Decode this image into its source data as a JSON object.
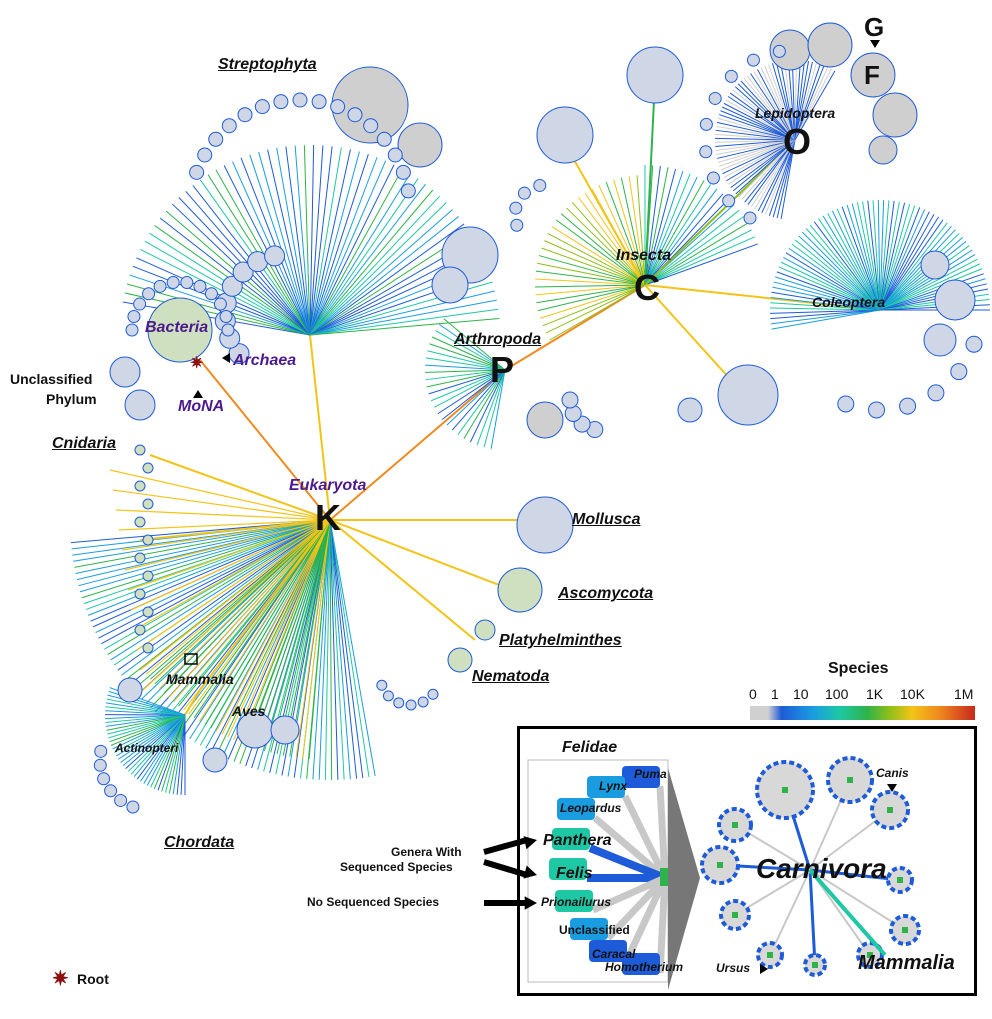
{
  "taxa": {
    "streptophyta": "Streptophyta",
    "bacteria": "Bacteria",
    "archaea": "Archaea",
    "mona": "MoNA",
    "unclassified_phylum_1": "Unclassified",
    "unclassified_phylum_2": "Phylum",
    "cnidaria": "Cnidaria",
    "eukaryota": "Eukaryota",
    "k": "K",
    "arthropoda": "Arthropoda",
    "p": "P",
    "insecta": "Insecta",
    "c": "C",
    "lepidoptera": "Lepidoptera",
    "o": "O",
    "g": "G",
    "f": "F",
    "coleoptera": "Coleoptera",
    "mollusca": "Mollusca",
    "ascomycota": "Ascomycota",
    "platyhelminthes": "Platyhelminthes",
    "nematoda": "Nematoda",
    "mammalia": "Mammalia",
    "aves": "Aves",
    "actinopteri": "Actinopteri",
    "chordata": "Chordata"
  },
  "root_label": "Root",
  "legend": {
    "title": "Species",
    "ticks": [
      "0",
      "1",
      "10",
      "100",
      "1K",
      "10K",
      "1M"
    ],
    "colors": [
      "#d0d0d0",
      "#1e5bd8",
      "#1a9de0",
      "#1ec8a4",
      "#2db34a",
      "#8fbf1a",
      "#f3c418",
      "#f08a1e",
      "#c8281e"
    ]
  },
  "inset": {
    "felidae": "Felidae",
    "genera": [
      "Puma",
      "Lynx",
      "Leopardus",
      "Panthera",
      "Felis",
      "Prionailurus",
      "Unclassified",
      "Caracal",
      "Homotherium"
    ],
    "carnivora": "Carnivora",
    "mammalia": "Mammalia",
    "canis": "Canis",
    "ursus": "Ursus",
    "annotation_sequenced_1": "Genera With",
    "annotation_sequenced_2": "Sequenced Species",
    "annotation_none": "No Sequenced Species"
  }
}
